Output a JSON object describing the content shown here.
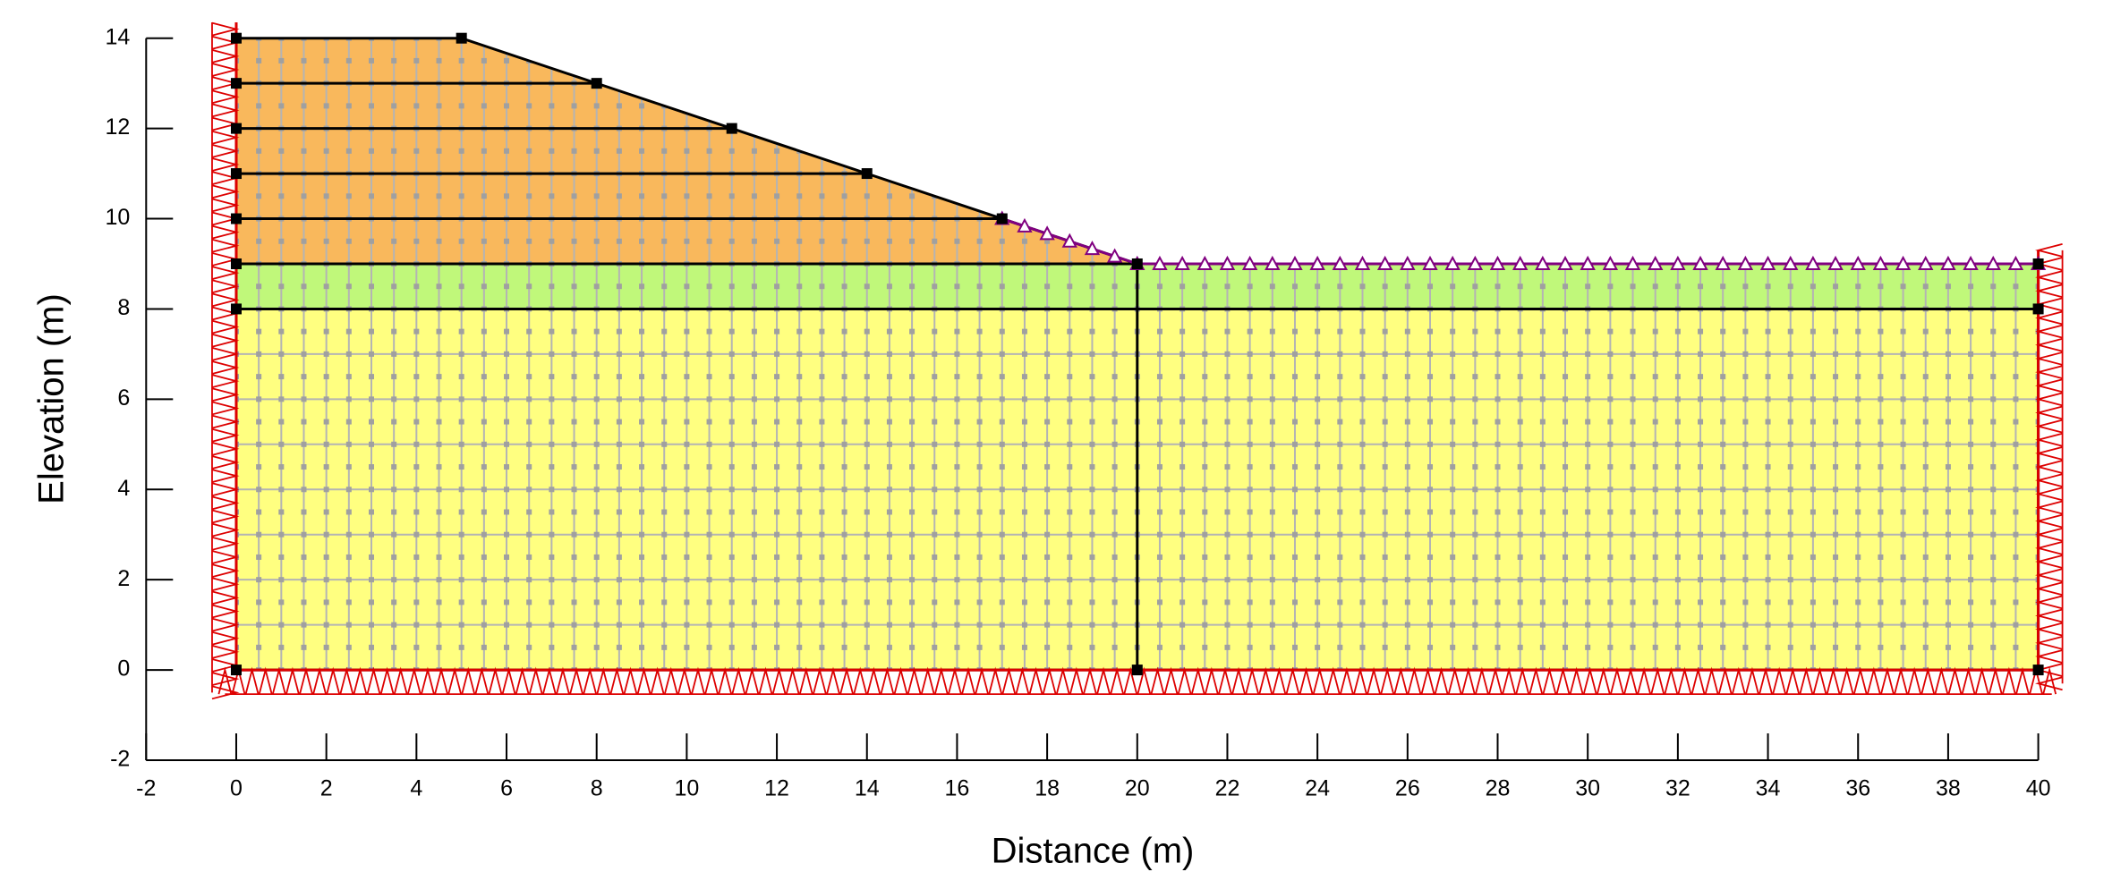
{
  "chart_data": {
    "type": "geometry",
    "xlabel": "Distance (m)",
    "ylabel": "Elevation (m)",
    "xlim": [
      -2,
      40
    ],
    "ylim": [
      -2,
      14
    ],
    "xticks": [
      -2,
      0,
      2,
      4,
      6,
      8,
      10,
      12,
      14,
      16,
      18,
      20,
      22,
      24,
      26,
      28,
      30,
      32,
      34,
      36,
      38,
      40
    ],
    "yticks": [
      -2,
      0,
      2,
      4,
      6,
      8,
      10,
      12,
      14
    ],
    "regions": [
      {
        "color": "#ffff80",
        "x": [
          0,
          40,
          40,
          0
        ],
        "y": [
          0,
          0,
          8,
          8
        ]
      },
      {
        "color": "#c0f87a",
        "x": [
          0,
          40,
          40,
          20,
          0
        ],
        "y": [
          8,
          8,
          9,
          9,
          9
        ]
      },
      {
        "color": "#f9b85c",
        "x": [
          0,
          20,
          5,
          0
        ],
        "y": [
          9,
          9,
          14,
          14
        ]
      }
    ],
    "lines": [
      {
        "x": [
          0,
          8
        ],
        "y": [
          13,
          13
        ]
      },
      {
        "x": [
          0,
          11
        ],
        "y": [
          12,
          12
        ]
      },
      {
        "x": [
          0,
          14
        ],
        "y": [
          11,
          11
        ]
      },
      {
        "x": [
          0,
          17
        ],
        "y": [
          10,
          10
        ]
      },
      {
        "x": [
          20,
          20
        ],
        "y": [
          9,
          0
        ]
      }
    ],
    "surface_boundary": {
      "color": "#800080",
      "x": [
        17,
        20,
        40
      ],
      "y": [
        10,
        9,
        9
      ]
    },
    "support_color": "#dd0000"
  }
}
